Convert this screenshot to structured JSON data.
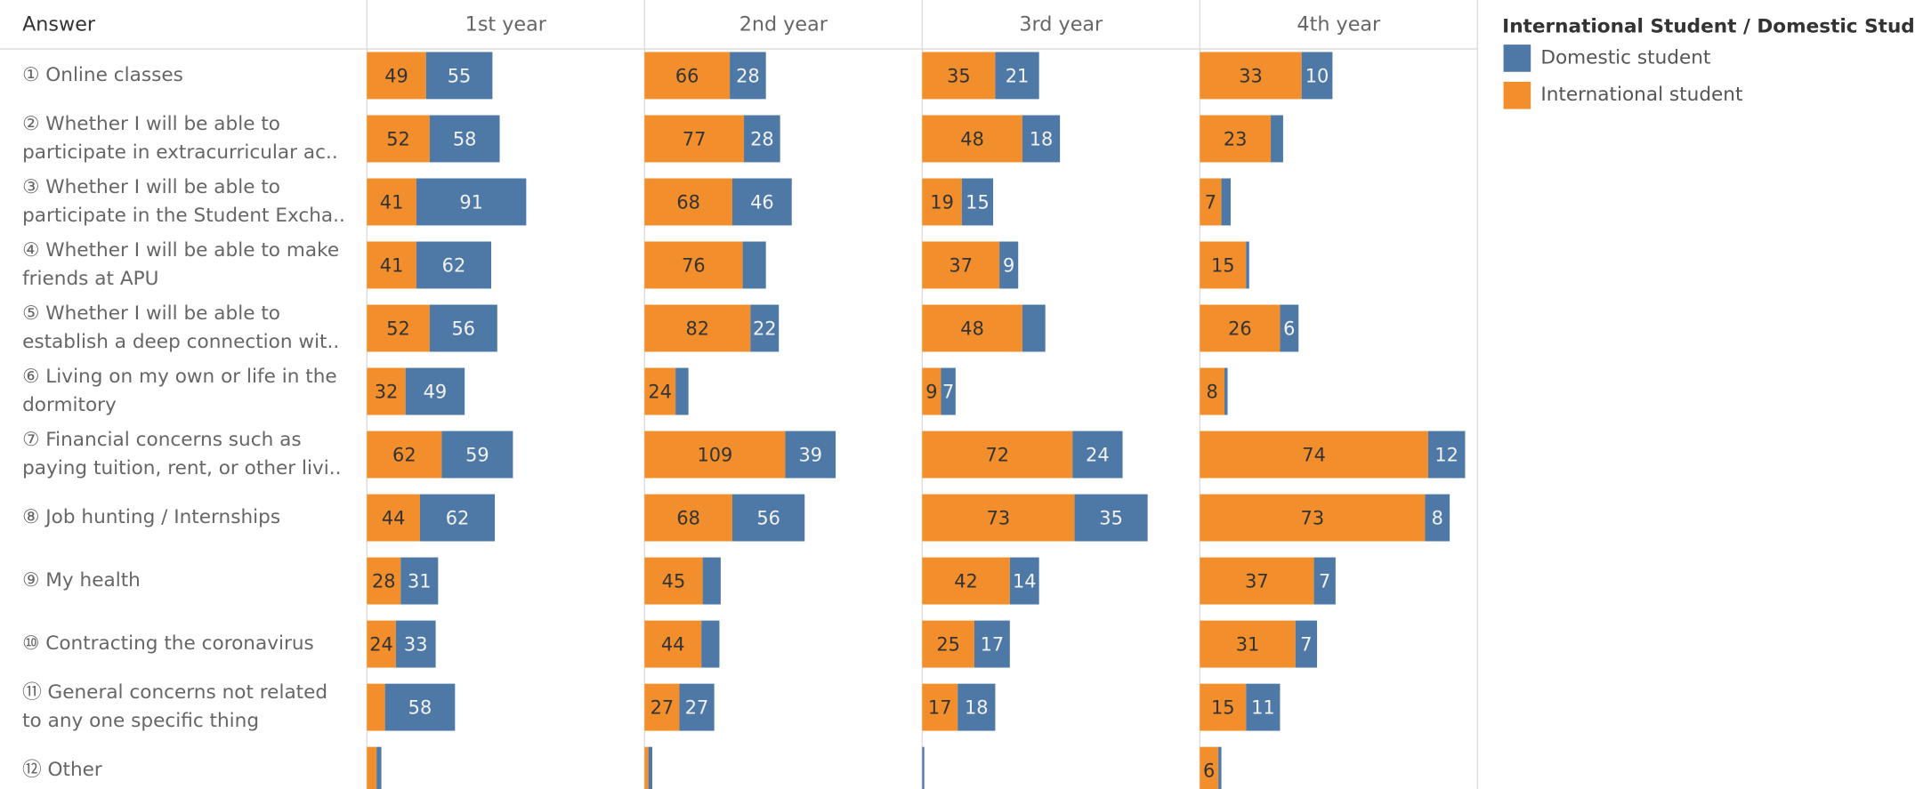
{
  "chart_data": {
    "type": "bar",
    "orientation": "horizontal",
    "stacked": true,
    "header_label": "Answer",
    "legend_title": "International Student / Domestic Student",
    "categories": [
      "① Online classes",
      "② Whether I will be able to\nparticipate in extracurricular ac..",
      "③ Whether I will be able to\nparticipate in the Student Excha..",
      "④ Whether I will be able to make\nfriends at APU",
      "⑤ Whether I will be able to\nestablish a deep connection wit..",
      "⑥ Living on my own or life in the\ndormitory",
      "⑦ Financial concerns such as\npaying tuition, rent, or other livi..",
      "⑧ Job hunting / Internships",
      "⑨ My health",
      "⑩ Contracting the coronavirus",
      "⑪ General concerns not related\nto any one specific thing",
      "⑫ Other"
    ],
    "panels": [
      {
        "title": "1st year",
        "xlim": [
          0,
          230
        ],
        "series": [
          {
            "name": "International student",
            "color": "#f28e2b",
            "values": [
              49,
              52,
              41,
              41,
              52,
              32,
              62,
              44,
              28,
              24,
              15,
              8
            ],
            "value_labels": [
              "49",
              "52",
              "41",
              "41",
              "52",
              "32",
              "62",
              "44",
              "28",
              "24",
              null,
              null
            ]
          },
          {
            "name": "Domestic student",
            "color": "#4e79a7",
            "values": [
              55,
              58,
              91,
              62,
              56,
              49,
              59,
              62,
              31,
              33,
              58,
              4
            ],
            "value_labels": [
              "55",
              "58",
              "91",
              "62",
              "56",
              "49",
              "59",
              "62",
              "31",
              "33",
              "58",
              null
            ]
          }
        ]
      },
      {
        "title": "2nd year",
        "xlim": [
          0,
          215
        ],
        "series": [
          {
            "name": "International student",
            "color": "#f28e2b",
            "values": [
              66,
              77,
              68,
              76,
              82,
              24,
              109,
              68,
              45,
              44,
              27,
              3
            ],
            "value_labels": [
              "66",
              "77",
              "68",
              "76",
              "82",
              "24",
              "109",
              "68",
              "45",
              "44",
              "27",
              null
            ]
          },
          {
            "name": "Domestic student",
            "color": "#4e79a7",
            "values": [
              28,
              28,
              46,
              18,
              22,
              10,
              39,
              56,
              14,
              14,
              27,
              3
            ],
            "value_labels": [
              "28",
              "28",
              "46",
              null,
              "22",
              null,
              "39",
              "56",
              null,
              null,
              "27",
              null
            ]
          }
        ]
      },
      {
        "title": "3rd year",
        "xlim": [
          0,
          133
        ],
        "series": [
          {
            "name": "International student",
            "color": "#f28e2b",
            "values": [
              35,
              48,
              19,
              37,
              48,
              9,
              72,
              73,
              42,
              25,
              17,
              0
            ],
            "value_labels": [
              "35",
              "48",
              "19",
              "37",
              "48",
              "9",
              "72",
              "73",
              "42",
              "25",
              "17",
              null
            ]
          },
          {
            "name": "Domestic student",
            "color": "#4e79a7",
            "values": [
              21,
              18,
              15,
              9,
              11,
              7,
              24,
              35,
              14,
              17,
              18,
              1
            ],
            "value_labels": [
              "21",
              "18",
              "15",
              "9",
              null,
              "7",
              "24",
              "35",
              "14",
              "17",
              "18",
              null
            ]
          }
        ]
      },
      {
        "title": "4th year",
        "xlim": [
          0,
          90
        ],
        "series": [
          {
            "name": "International student",
            "color": "#f28e2b",
            "values": [
              33,
              23,
              7,
              15,
              26,
              8,
              74,
              73,
              37,
              31,
              15,
              6
            ],
            "value_labels": [
              "33",
              "23",
              "7",
              "15",
              "26",
              "8",
              "74",
              "73",
              "37",
              "31",
              "15",
              "6"
            ]
          },
          {
            "name": "Domestic student",
            "color": "#4e79a7",
            "values": [
              10,
              4,
              3,
              1,
              6,
              1,
              12,
              8,
              7,
              7,
              11,
              1
            ],
            "value_labels": [
              "10",
              null,
              null,
              null,
              "6",
              null,
              "12",
              "8",
              "7",
              "7",
              "11",
              null
            ]
          }
        ]
      }
    ]
  }
}
